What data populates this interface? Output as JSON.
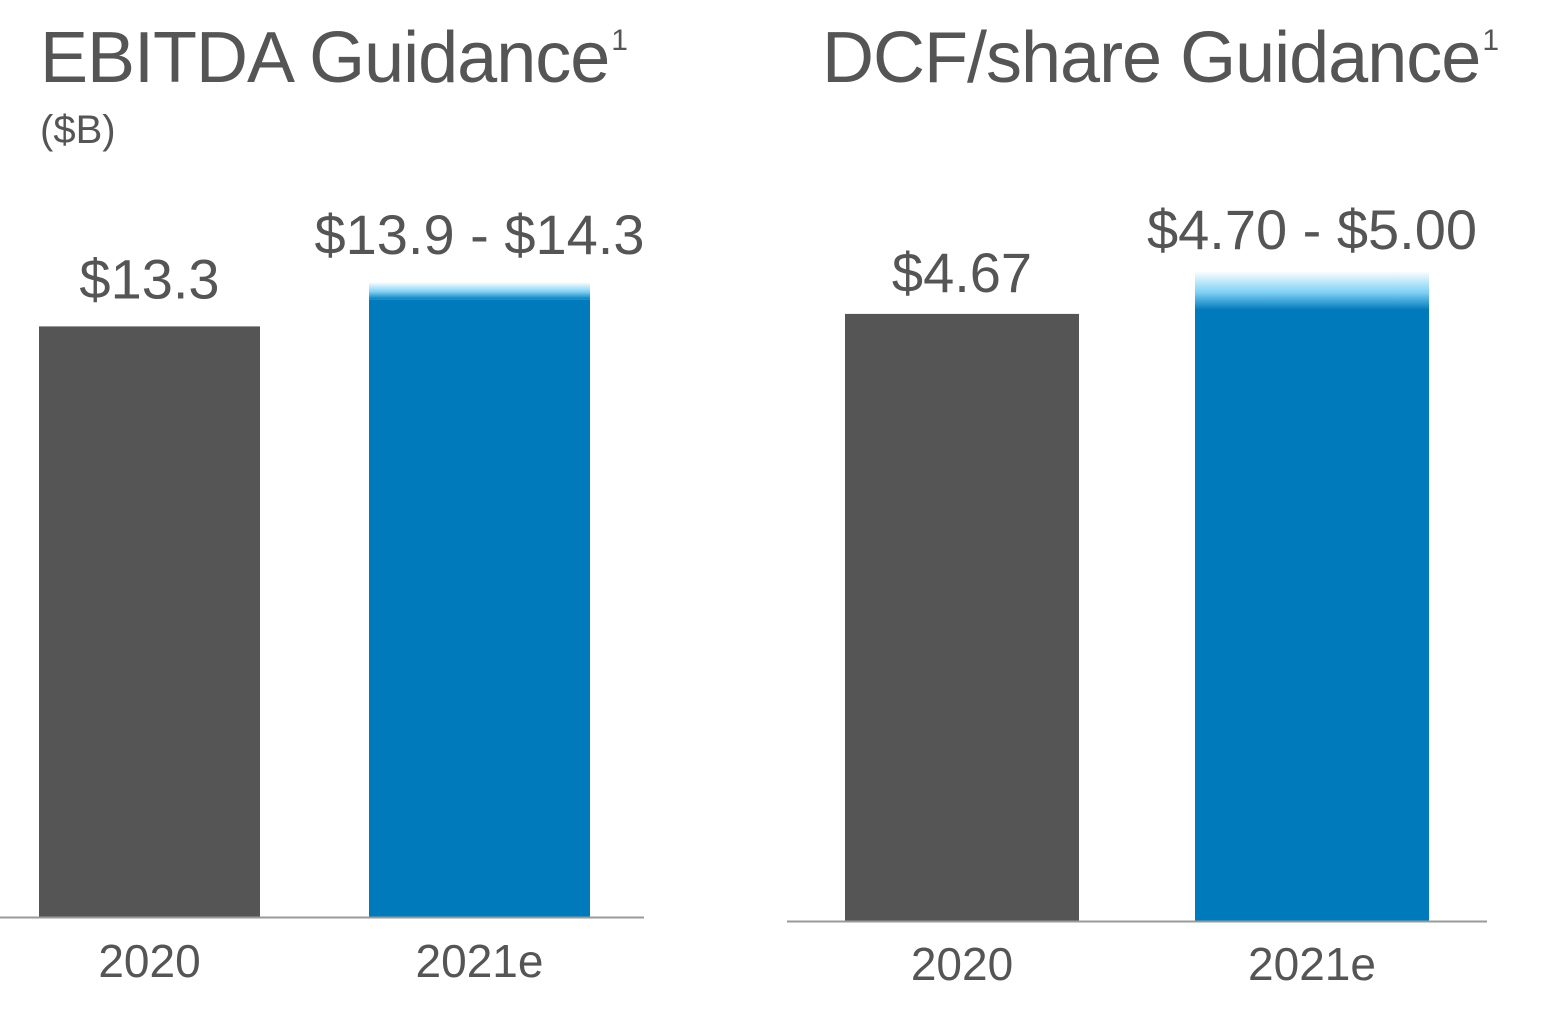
{
  "chart_data": [
    {
      "type": "bar",
      "title": "EBITDA Guidance",
      "title_superscript": "1",
      "subtitle": "($B)",
      "categories": [
        "2020",
        "2021e"
      ],
      "values": [
        13.3,
        13.9
      ],
      "range_high": [
        null,
        14.3
      ],
      "data_labels": [
        "$13.3",
        "$13.9 - $14.3"
      ],
      "ylim": [
        0,
        14.3
      ],
      "grid": false,
      "colors": [
        "#555555",
        "#007ABA"
      ],
      "range_color": "#7FD0F5"
    },
    {
      "type": "bar",
      "title": "DCF/share Guidance",
      "title_superscript": "1",
      "categories": [
        "2020",
        "2021e"
      ],
      "values": [
        4.67,
        4.7
      ],
      "range_high": [
        null,
        5.0
      ],
      "data_labels": [
        "$4.67",
        "$4.70 - $5.00"
      ],
      "ylim": [
        0,
        5.0
      ],
      "grid": false,
      "colors": [
        "#555555",
        "#007ABA"
      ],
      "range_color": "#7FD0F5"
    }
  ]
}
